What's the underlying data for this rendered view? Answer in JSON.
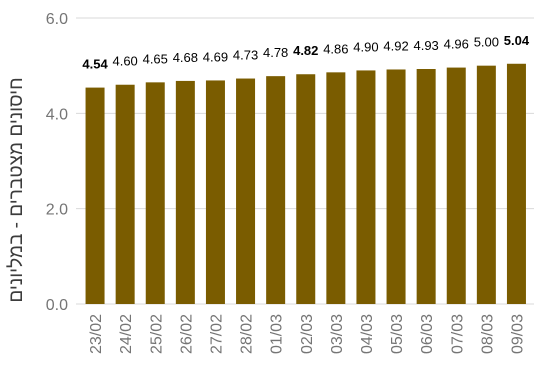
{
  "chart_data": {
    "type": "bar",
    "ylabel": "חיסונים מצטברים - במליונים",
    "xlabel": "",
    "ylim": [
      0,
      6
    ],
    "yticks": [
      "0.0",
      "2.0",
      "4.0",
      "6.0"
    ],
    "ytick_values": [
      0,
      2,
      4,
      6
    ],
    "grid": true,
    "categories": [
      "23/02",
      "24/02",
      "25/02",
      "26/02",
      "27/02",
      "28/02",
      "01/03",
      "02/03",
      "03/03",
      "04/03",
      "05/03",
      "06/03",
      "07/03",
      "08/03",
      "09/03"
    ],
    "values": [
      4.54,
      4.6,
      4.65,
      4.68,
      4.69,
      4.73,
      4.78,
      4.82,
      4.86,
      4.9,
      4.92,
      4.93,
      4.96,
      5.0,
      5.04
    ],
    "value_labels": [
      "4.54",
      "4.60",
      "4.65",
      "4.68",
      "4.69",
      "4.73",
      "4.78",
      "4.82",
      "4.86",
      "4.90",
      "4.92",
      "4.93",
      "4.96",
      "5.00",
      "5.04"
    ],
    "bold_labels": [
      true,
      false,
      false,
      false,
      false,
      false,
      false,
      true,
      false,
      false,
      false,
      false,
      false,
      false,
      true
    ],
    "colors": {
      "bar": "#7a5c00",
      "grid": "#d9d9d9",
      "axis_text": "#757575",
      "label_text": "#000000"
    }
  }
}
